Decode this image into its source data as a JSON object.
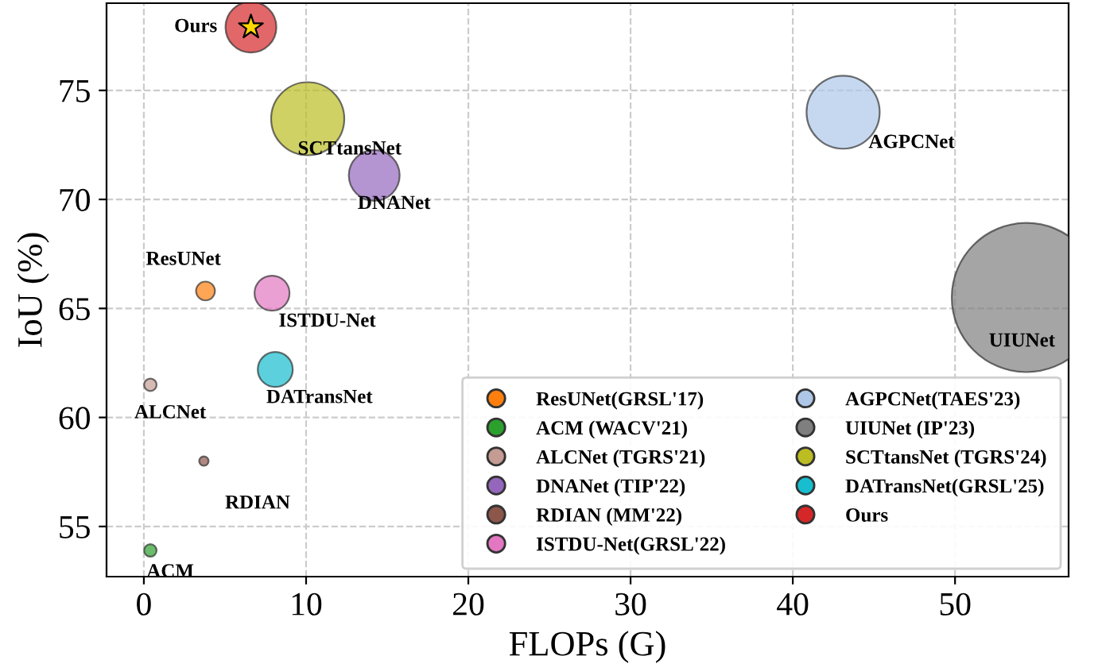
{
  "chart_data": {
    "type": "bubble",
    "xlabel": "FLOPs (G)",
    "ylabel": "IoU (%)",
    "xlim": [
      -2.3,
      57
    ],
    "ylim": [
      52.7,
      79
    ],
    "xticks": [
      0,
      10,
      20,
      30,
      40,
      50
    ],
    "yticks": [
      55,
      60,
      65,
      70,
      75
    ],
    "grid": true,
    "legend": "bottom right",
    "marker": "circle",
    "series": [
      {
        "name": "ResUNet(GRSL'17)",
        "color": "#ff7f0e",
        "x": [
          3.8
        ],
        "values": [
          65.8
        ],
        "sizes": [
          0.016
        ]
      },
      {
        "name": "ACM (WACV'21)",
        "color": "#2ca02c",
        "x": [
          0.4
        ],
        "values": [
          53.9
        ],
        "sizes": [
          0.007
        ]
      },
      {
        "name": "ALCNet (TGRS'21)",
        "color": "#c49c94",
        "x": [
          0.4
        ],
        "values": [
          61.5
        ],
        "sizes": [
          0.007
        ]
      },
      {
        "name": "DNANet (TIP'22)",
        "color": "#9467bd",
        "x": [
          14.2
        ],
        "values": [
          71.1
        ],
        "sizes": [
          0.116
        ]
      },
      {
        "name": "RDIAN (MM'22)",
        "color": "#8c564b",
        "x": [
          3.7
        ],
        "values": [
          58.0
        ],
        "sizes": [
          0.004
        ]
      },
      {
        "name": "ISTDU-Net(GRSL'22)",
        "color": "#e377c2",
        "x": [
          7.9
        ],
        "values": [
          65.7
        ],
        "sizes": [
          0.055
        ]
      },
      {
        "name": "AGPCNet(TAES'23)",
        "color": "#aec7e8",
        "x": [
          43.1
        ],
        "values": [
          74.0
        ],
        "sizes": [
          0.24
        ]
      },
      {
        "name": "UIUNet (IP'23)",
        "color": "#7f7f7f",
        "x": [
          54.4
        ],
        "values": [
          65.5
        ],
        "sizes": [
          1
        ]
      },
      {
        "name": "SCTtansNet (TGRS'24)",
        "color": "#bcbd22",
        "x": [
          10.1
        ],
        "values": [
          73.7
        ],
        "sizes": [
          0.24
        ]
      },
      {
        "name": "DATransNet(GRSL'25)",
        "color": "#17becf",
        "x": [
          8.1
        ],
        "values": [
          62.2
        ],
        "sizes": [
          0.055
        ]
      },
      {
        "name": "Ours",
        "color": "#d62728",
        "x": [
          6.6
        ],
        "values": [
          77.9
        ],
        "sizes": [
          0.116
        ]
      },
      {
        "type": "scatter",
        "marker": "star",
        "color": "#ffd700",
        "x": [
          6.6
        ],
        "values": [
          77.9
        ]
      }
    ],
    "annotations": [
      {
        "text": "ResUNet",
        "x": 3.8,
        "y": 65.8
      },
      {
        "text": "ACM",
        "x": 0.4,
        "y": 53.9
      },
      {
        "text": "ALCNet",
        "x": 0.4,
        "y": 61.5
      },
      {
        "text": "DNANet",
        "x": 14.2,
        "y": 71.1
      },
      "RDIAN",
      {
        "text": "ISTDU-Net",
        "x": 7.9,
        "y": 65.7
      },
      {
        "text": "AGPCNet",
        "x": 43.1,
        "y": 74.0
      },
      {
        "text": "UIUNet",
        "x": 54.4,
        "y": 65.5
      },
      {
        "text": "SCTtansNet",
        "x": 10.1,
        "y": 73.7
      },
      {
        "text": "DATransNet",
        "x": 8.1,
        "y": 62.2
      },
      {
        "text": "Ours",
        "x": 6.6,
        "y": 77.9
      }
    ]
  }
}
